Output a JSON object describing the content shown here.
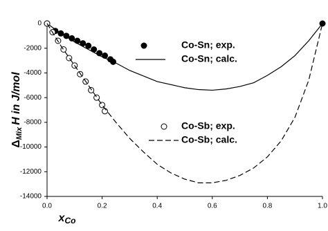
{
  "chart_data": {
    "type": "line",
    "xlabel": {
      "text": "x",
      "subscript": "Co"
    },
    "ylabel": {
      "symbol": "Δ",
      "subscript": "Mix",
      "text": "H in J/mol"
    },
    "xlim": [
      0,
      1
    ],
    "ylim": [
      -14000,
      0
    ],
    "xticks": [
      {
        "value": 0,
        "label": "0.0"
      },
      {
        "value": 0.2,
        "label": "0.2"
      },
      {
        "value": 0.4,
        "label": "0.4"
      },
      {
        "value": 0.6,
        "label": "0.6"
      },
      {
        "value": 0.8,
        "label": "0.8"
      },
      {
        "value": 1,
        "label": "1.0"
      }
    ],
    "yticks": [
      -14000,
      -12000,
      -10000,
      -8000,
      -6000,
      -4000,
      -2000,
      0
    ],
    "series": [
      {
        "name": "Co-Sn; exp.",
        "color": "#000000",
        "marker": "filled",
        "line_style": "none",
        "x": [
          0,
          0.03,
          0.05,
          0.07,
          0.09,
          0.11,
          0.13,
          0.15,
          0.17,
          0.19,
          0.21,
          0.23,
          0.24,
          1
        ],
        "values": [
          0,
          -600,
          -800,
          -1000,
          -1200,
          -1400,
          -1600,
          -1800,
          -2100,
          -2400,
          -2600,
          -2900,
          -3100,
          0
        ]
      },
      {
        "name": "Co-Sn; calc.",
        "color": "#000000",
        "marker": "none",
        "line_style": "solid",
        "x": [
          0,
          0.05,
          0.1,
          0.15,
          0.2,
          0.25,
          0.3,
          0.4,
          0.5,
          0.55,
          0.6,
          0.65,
          0.7,
          0.75,
          0.8,
          0.85,
          0.9,
          0.95,
          1
        ],
        "values": [
          0,
          -800,
          -1500,
          -2100,
          -2700,
          -3200,
          -3800,
          -4700,
          -5200,
          -5350,
          -5400,
          -5300,
          -5100,
          -4800,
          -4200,
          -3500,
          -2600,
          -1400,
          0
        ]
      },
      {
        "name": "Co-Sb; exp.",
        "color": "#000000",
        "marker": "open",
        "line_style": "none",
        "x": [
          0,
          0.02,
          0.04,
          0.06,
          0.08,
          0.1,
          0.12,
          0.14,
          0.16,
          0.18,
          0.2,
          0.21
        ],
        "values": [
          0,
          -700,
          -1400,
          -2100,
          -2800,
          -3400,
          -4100,
          -4700,
          -5400,
          -6000,
          -6600,
          -7100
        ]
      },
      {
        "name": "Co-Sb; calc.",
        "color": "#000000",
        "marker": "none",
        "line_style": "dashed",
        "x": [
          0,
          0.05,
          0.1,
          0.15,
          0.2,
          0.25,
          0.3,
          0.35,
          0.4,
          0.45,
          0.5,
          0.55,
          0.6,
          0.65,
          0.7,
          0.75,
          0.8,
          0.85,
          0.9,
          0.95,
          1
        ],
        "values": [
          0,
          -1800,
          -3400,
          -5000,
          -6600,
          -8000,
          -9300,
          -10400,
          -11400,
          -12100,
          -12600,
          -12900,
          -12900,
          -12700,
          -12300,
          -11700,
          -10800,
          -9500,
          -7600,
          -4600,
          0
        ]
      }
    ]
  }
}
